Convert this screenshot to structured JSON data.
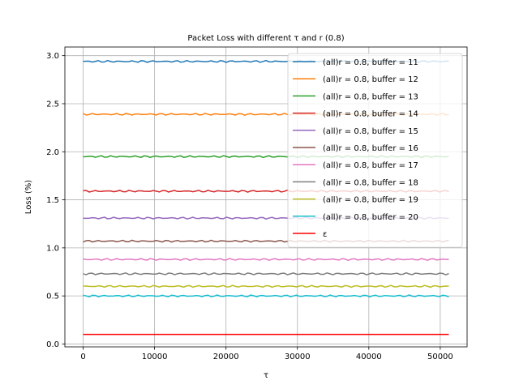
{
  "chart_data": {
    "type": "line",
    "title": "Packet Loss with different τ and r (0.8)",
    "xlabel": "τ",
    "ylabel": "Loss (%)",
    "xlim": [
      -2560,
      53760
    ],
    "ylim": [
      -0.03,
      3.09
    ],
    "xticks": [
      0,
      10000,
      20000,
      30000,
      40000,
      50000
    ],
    "yticks": [
      0.0,
      0.5,
      1.0,
      1.5,
      2.0,
      2.5,
      3.0
    ],
    "xtick_labels": [
      "0",
      "10000",
      "20000",
      "30000",
      "40000",
      "50000"
    ],
    "ytick_labels": [
      "0.0",
      "0.5",
      "1.0",
      "1.5",
      "2.0",
      "2.5",
      "3.0"
    ],
    "grid": true,
    "legend_position": "top-right",
    "x": [
      0,
      51200
    ],
    "series": [
      {
        "name": "(all)r = 0.8, buffer = 11",
        "color": "#1f77b4",
        "values": [
          2.94,
          2.94
        ]
      },
      {
        "name": "(all)r = 0.8, buffer = 12",
        "color": "#ff7f0e",
        "values": [
          2.39,
          2.39
        ]
      },
      {
        "name": "(all)r = 0.8, buffer = 13",
        "color": "#2ca02c",
        "values": [
          1.95,
          1.95
        ]
      },
      {
        "name": "(all)r = 0.8, buffer = 14",
        "color": "#d62728",
        "values": [
          1.59,
          1.59
        ]
      },
      {
        "name": "(all)r = 0.8, buffer = 15",
        "color": "#9467bd",
        "values": [
          1.31,
          1.31
        ]
      },
      {
        "name": "(all)r = 0.8, buffer = 16",
        "color": "#8c564b",
        "values": [
          1.07,
          1.07
        ]
      },
      {
        "name": "(all)r = 0.8, buffer = 17",
        "color": "#e377c2",
        "values": [
          0.88,
          0.88
        ]
      },
      {
        "name": "(all)r = 0.8, buffer = 18",
        "color": "#7f7f7f",
        "values": [
          0.73,
          0.73
        ]
      },
      {
        "name": "(all)r = 0.8, buffer = 19",
        "color": "#bcbd22",
        "values": [
          0.6,
          0.6
        ]
      },
      {
        "name": "(all)r = 0.8, buffer = 20",
        "color": "#17becf",
        "values": [
          0.5,
          0.5
        ]
      },
      {
        "name": "ε",
        "color": "#ff0000",
        "values": [
          0.1,
          0.1
        ],
        "flat": true
      }
    ]
  }
}
